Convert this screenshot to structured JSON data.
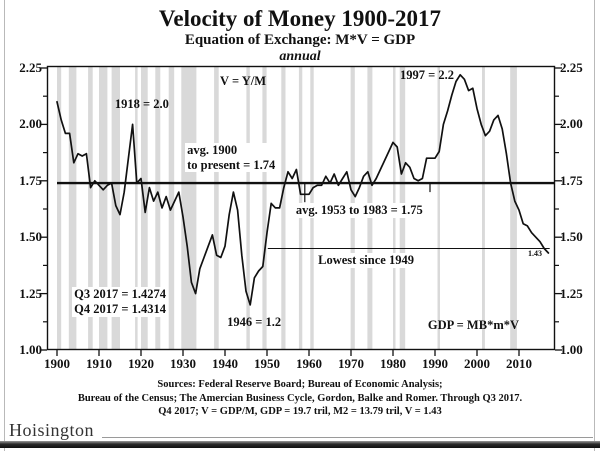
{
  "page": {
    "title": "Velocity of Money 1900-2017",
    "subtitle": "Equation of Exchange: M*V = GDP",
    "frequency": "annual",
    "watermark": "Hoisington",
    "sources_line1": "Sources: Federal Reserve Board; Bureau of Economic Analysis;",
    "sources_line2": "Bureau of the Census; The Amercian Business Cycle, Gordon, Balke and Romer. Through Q3 2017.",
    "sources_line3": "Q4 2017; V = GDP/M, GDP = 19.7 tril, M2 = 13.79 tril, V = 1.43"
  },
  "chart_data": {
    "type": "line",
    "title": "Velocity of Money 1900-2017",
    "xlabel": "",
    "ylabel": "",
    "years": {
      "start": 1900,
      "end": 2017,
      "step": 1
    },
    "values": [
      2.1,
      2.02,
      1.96,
      1.96,
      1.83,
      1.87,
      1.86,
      1.87,
      1.72,
      1.75,
      1.73,
      1.71,
      1.73,
      1.74,
      1.64,
      1.6,
      1.7,
      1.85,
      2.0,
      1.74,
      1.76,
      1.61,
      1.72,
      1.66,
      1.7,
      1.63,
      1.68,
      1.62,
      1.66,
      1.7,
      1.59,
      1.46,
      1.3,
      1.25,
      1.36,
      1.41,
      1.46,
      1.51,
      1.42,
      1.41,
      1.46,
      1.6,
      1.7,
      1.62,
      1.42,
      1.26,
      1.2,
      1.32,
      1.35,
      1.37,
      1.52,
      1.65,
      1.63,
      1.63,
      1.72,
      1.79,
      1.76,
      1.8,
      1.69,
      1.69,
      1.69,
      1.72,
      1.73,
      1.73,
      1.77,
      1.74,
      1.78,
      1.73,
      1.76,
      1.79,
      1.71,
      1.68,
      1.72,
      1.77,
      1.79,
      1.73,
      1.76,
      1.8,
      1.84,
      1.88,
      1.92,
      1.9,
      1.78,
      1.83,
      1.81,
      1.76,
      1.75,
      1.76,
      1.85,
      1.85,
      1.85,
      1.88,
      2.0,
      2.06,
      2.13,
      2.19,
      2.22,
      2.2,
      2.15,
      2.16,
      2.07,
      2.0,
      1.95,
      1.97,
      2.02,
      2.04,
      1.98,
      1.87,
      1.74,
      1.66,
      1.62,
      1.56,
      1.55,
      1.52,
      1.5,
      1.48,
      1.45,
      1.43
    ],
    "ylim": [
      1.0,
      2.25
    ],
    "xlim": [
      1900,
      2018.5
    ],
    "yticks": [
      1.0,
      1.25,
      1.5,
      1.75,
      2.0,
      2.25
    ],
    "ytick_labels": [
      "1.00",
      "1.25",
      "1.50",
      "1.75",
      "2.00",
      "2.25"
    ],
    "yminor_step": 0.125,
    "xticks": [
      1900,
      1910,
      1920,
      1930,
      1940,
      1950,
      1960,
      1970,
      1980,
      1990,
      2000,
      2010
    ],
    "grid": false,
    "legend": "none",
    "line_color": "#111111",
    "recession_color": "#d9d9d9",
    "reference_lines": [
      {
        "name": "avg-1900-present-line",
        "value": 1.74,
        "span": [
          1900,
          2018.5
        ],
        "width": 2.4
      },
      {
        "name": "lowest-since-1949-line",
        "value": 1.45,
        "span": [
          1950.2,
          2017.3
        ],
        "width": 1.0
      }
    ],
    "leader_ticks": [
      {
        "year": 1959.0,
        "from": 1.74,
        "to": 1.655
      },
      {
        "year": 1988.8,
        "from": 1.74,
        "to": 1.7
      }
    ],
    "recessions": [
      [
        1900.0,
        1901.0
      ],
      [
        1902.8,
        1904.6
      ],
      [
        1907.4,
        1908.5
      ],
      [
        1910.0,
        1912.0
      ],
      [
        1913.0,
        1915.0
      ],
      [
        1918.6,
        1919.2
      ],
      [
        1920.0,
        1921.6
      ],
      [
        1923.4,
        1924.6
      ],
      [
        1926.6,
        1927.9
      ],
      [
        1929.6,
        1933.2
      ],
      [
        1937.4,
        1938.5
      ],
      [
        1945.1,
        1945.9
      ],
      [
        1948.9,
        1949.9
      ],
      [
        1953.4,
        1954.4
      ],
      [
        1957.6,
        1958.4
      ],
      [
        1960.3,
        1961.1
      ],
      [
        1969.9,
        1970.9
      ],
      [
        1973.9,
        1975.1
      ],
      [
        1980.0,
        1980.6
      ],
      [
        1981.6,
        1982.9
      ],
      [
        1990.6,
        1991.2
      ],
      [
        2001.2,
        2001.9
      ],
      [
        2007.9,
        2009.5
      ]
    ],
    "annotations": [
      {
        "name": "v-equation-note",
        "text": "V = Y/M",
        "year": 1944.3,
        "value": 2.222,
        "align": "center",
        "boxed": false
      },
      {
        "name": "peak-1918-note",
        "text": "1918 = 2.0",
        "year": 1920.2,
        "value": 2.122,
        "align": "center",
        "boxed": false
      },
      {
        "name": "peak-1997-note",
        "text": "1997 = 2.2",
        "year": 1988.1,
        "value": 2.252,
        "align": "center",
        "boxed": false
      },
      {
        "name": "avg-1900-note",
        "text": "avg. 1900\nto present = 1.74",
        "year": 1930.5,
        "value": 1.918,
        "align": "left",
        "boxed": true
      },
      {
        "name": "avg-1953-note",
        "text": "avg. 1953 to 1983 = 1.75",
        "year": 1956.4,
        "value": 1.652,
        "align": "left",
        "boxed": true
      },
      {
        "name": "lowest-since-1949-note",
        "text": "Lowest since 1949",
        "year": 1961.7,
        "value": 1.43,
        "align": "left",
        "boxed": true
      },
      {
        "name": "q3-q4-2017-note",
        "text": "Q3 2017 = 1.4274\nQ4 2017 = 1.4314",
        "year": 1903.6,
        "value": 1.279,
        "align": "left",
        "boxed": true
      },
      {
        "name": "trough-1946-note",
        "text": "1946 = 1.2",
        "year": 1940.5,
        "value": 1.155,
        "align": "left",
        "boxed": false
      },
      {
        "name": "gdp-equation-note",
        "text": "GDP = MB*m*V",
        "year": 1988.3,
        "value": 1.142,
        "align": "left",
        "boxed": false
      },
      {
        "name": "end-value-note",
        "text": "1.43",
        "year": 2011.9,
        "value": 1.448,
        "align": "left",
        "boxed": true,
        "small": true
      }
    ]
  }
}
